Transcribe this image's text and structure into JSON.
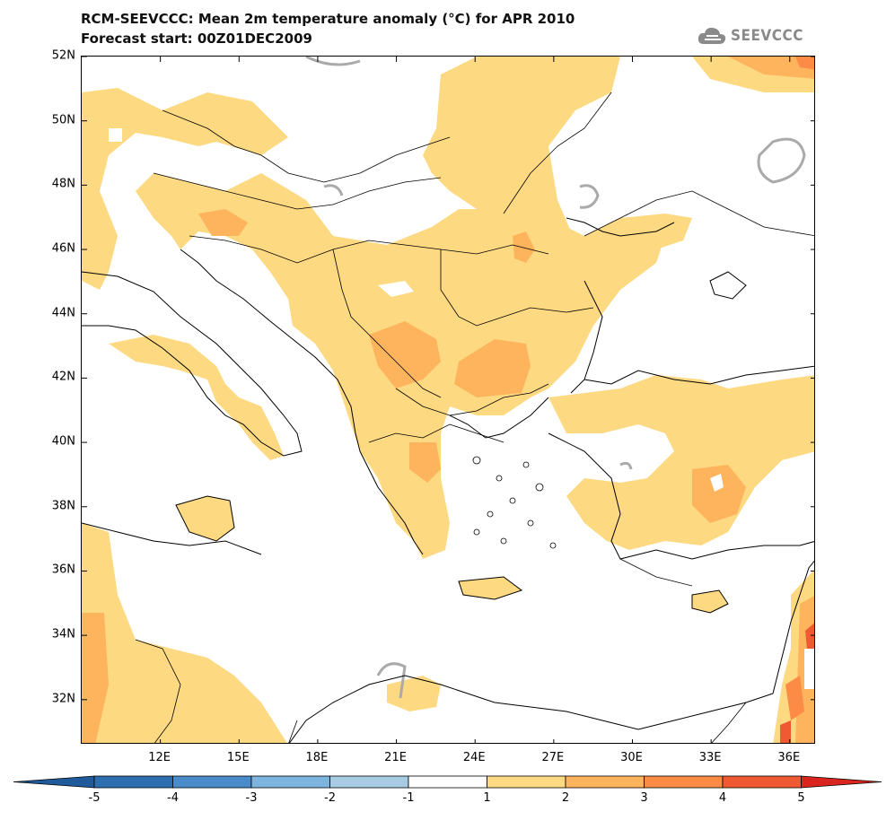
{
  "title_line1": "RCM-SEEVCCC: Mean 2m temperature anomaly (°C) for APR 2010",
  "title_line2": "Forecast start: 00Z01DEC2009",
  "logo": {
    "text": "SEEVCCC",
    "icon": "cloud-logo-icon"
  },
  "map": {
    "lat_labels": [
      "52N",
      "50N",
      "48N",
      "46N",
      "44N",
      "42N",
      "40N",
      "38N",
      "36N",
      "34N",
      "32N"
    ],
    "lon_labels": [
      "12E",
      "15E",
      "18E",
      "21E",
      "24E",
      "27E",
      "30E",
      "33E",
      "36E"
    ],
    "lat_range": [
      30.6,
      52
    ],
    "lon_range": [
      9,
      37
    ]
  },
  "colorbar": {
    "labels": [
      "-5",
      "-4",
      "-3",
      "-2",
      "-1",
      "1",
      "2",
      "3",
      "4",
      "5"
    ],
    "colors": [
      "#1f5a9a",
      "#2d6eb0",
      "#4a8cc9",
      "#7db4dd",
      "#a6cbe3",
      "#ffffff",
      "#fdd981",
      "#fdb45c",
      "#fb8b45",
      "#f05a32",
      "#d9251d"
    ]
  }
}
